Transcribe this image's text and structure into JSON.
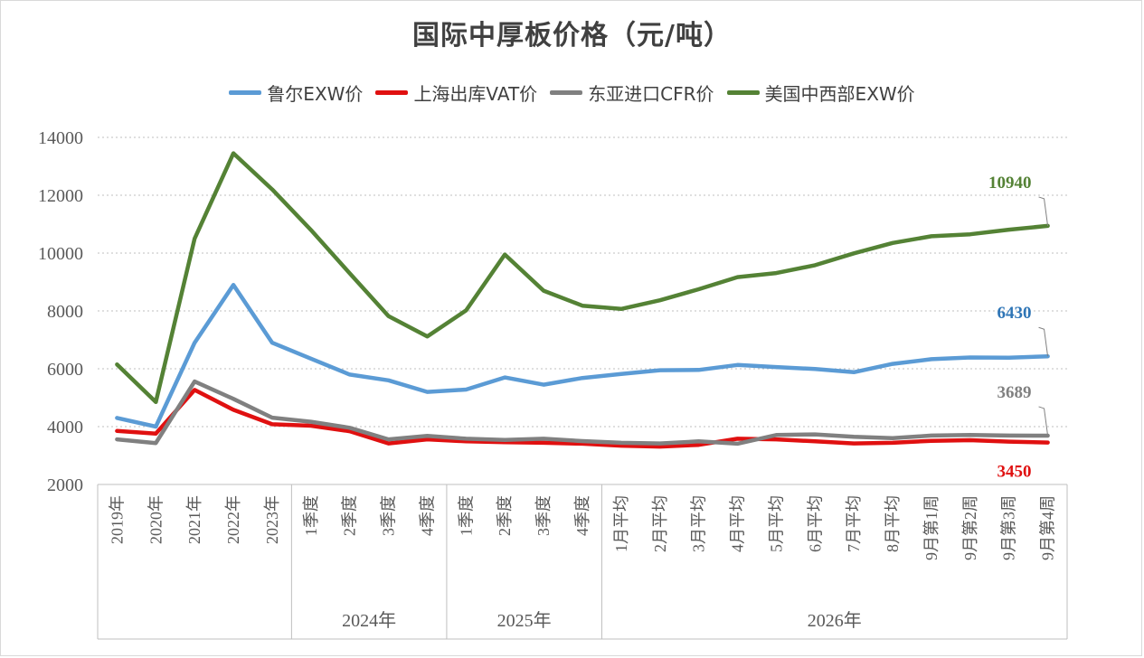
{
  "chart_data": {
    "type": "line",
    "title": "国际中厚板价格（元/吨）",
    "ylim": [
      2000,
      14000
    ],
    "yticks": [
      2000,
      4000,
      6000,
      8000,
      10000,
      12000,
      14000
    ],
    "grid": true,
    "legend_position": "top",
    "categories": [
      "2019年",
      "2020年",
      "2021年",
      "2022年",
      "2023年",
      "1季度",
      "2季度",
      "3季度",
      "4季度",
      "1季度",
      "2季度",
      "3季度",
      "4季度",
      "1月平均",
      "2月平均",
      "3月平均",
      "4月平均",
      "5月平均",
      "6月平均",
      "7月平均",
      "8月平均",
      "9月第1周",
      "9月第2周",
      "9月第3周",
      "9月第4周"
    ],
    "groups": [
      {
        "label": "",
        "start": 0,
        "end": 4
      },
      {
        "label": "2024年",
        "start": 5,
        "end": 8
      },
      {
        "label": "2025年",
        "start": 9,
        "end": 12
      },
      {
        "label": "2026年",
        "start": 13,
        "end": 24
      }
    ],
    "series": [
      {
        "name": "鲁尔EXW价",
        "color": "#5b9bd5",
        "label_color": "#2e75b6",
        "end_label": "6430",
        "values": [
          4300,
          4000,
          6900,
          8900,
          6900,
          6350,
          5800,
          5600,
          5200,
          5280,
          5700,
          5450,
          5680,
          5820,
          5950,
          5960,
          6130,
          6060,
          5990,
          5880,
          6170,
          6330,
          6390,
          6380,
          6430
        ]
      },
      {
        "name": "上海出库VAT价",
        "color": "#e01010",
        "label_color": "#e01010",
        "end_label": "3450",
        "values": [
          3850,
          3760,
          5270,
          4580,
          4080,
          4030,
          3840,
          3420,
          3560,
          3490,
          3460,
          3440,
          3410,
          3340,
          3310,
          3370,
          3580,
          3560,
          3490,
          3420,
          3440,
          3510,
          3530,
          3480,
          3450
        ]
      },
      {
        "name": "东亚进口CFR价",
        "color": "#808080",
        "label_color": "#808080",
        "end_label": "3689",
        "values": [
          3560,
          3430,
          5560,
          4960,
          4310,
          4170,
          3960,
          3560,
          3680,
          3580,
          3540,
          3580,
          3500,
          3440,
          3420,
          3490,
          3410,
          3710,
          3730,
          3650,
          3600,
          3690,
          3710,
          3690,
          3689
        ]
      },
      {
        "name": "美国中西部EXW价",
        "color": "#548235",
        "label_color": "#548235",
        "end_label": "10940",
        "values": [
          6150,
          4850,
          10500,
          13450,
          12200,
          10800,
          9300,
          7820,
          7120,
          8020,
          9950,
          8700,
          8180,
          8070,
          8370,
          8750,
          9170,
          9310,
          9580,
          9990,
          10350,
          10580,
          10650,
          10810,
          10940
        ]
      }
    ]
  }
}
